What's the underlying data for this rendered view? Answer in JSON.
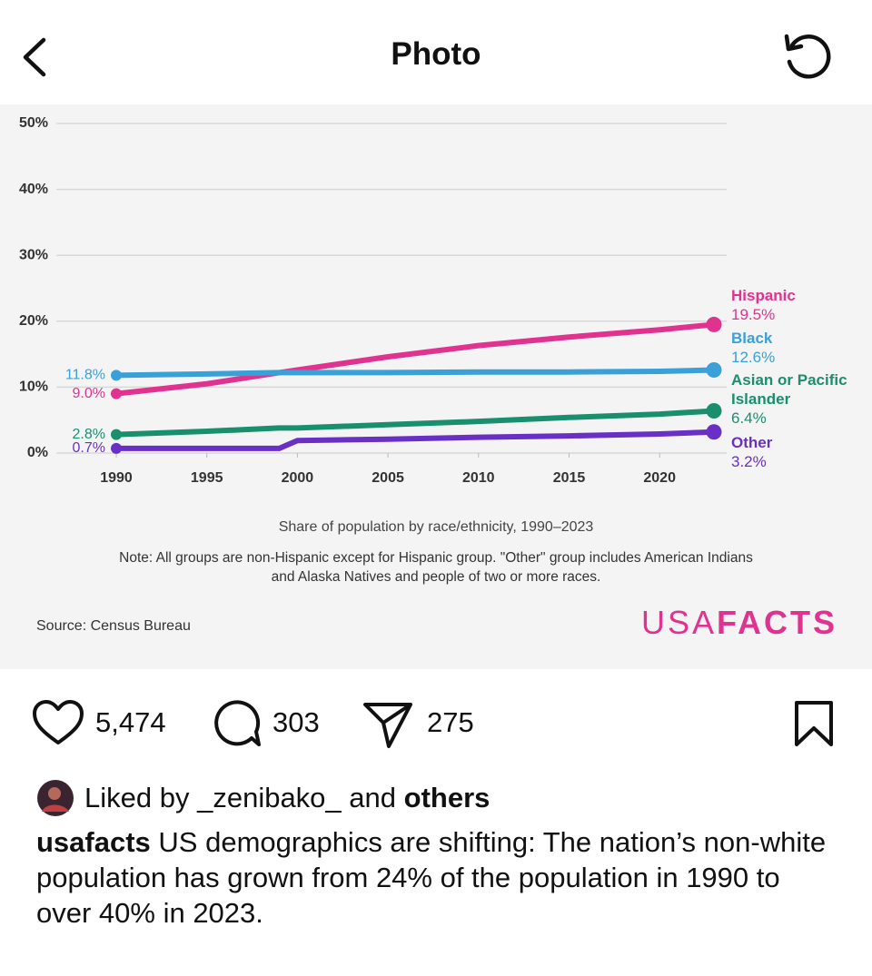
{
  "header": {
    "title": "Photo"
  },
  "chart_data": {
    "type": "line",
    "x": [
      1990,
      1995,
      1999,
      2000,
      2005,
      2010,
      2015,
      2020,
      2023
    ],
    "xlim": [
      1990,
      2023
    ],
    "xticks": [
      1990,
      1995,
      2000,
      2005,
      2010,
      2015,
      2020
    ],
    "ylim": [
      0,
      50
    ],
    "yticks": [
      {
        "value": 0,
        "label": "0%"
      },
      {
        "value": 10,
        "label": "10%"
      },
      {
        "value": 20,
        "label": "20%"
      },
      {
        "value": 30,
        "label": "30%"
      },
      {
        "value": 40,
        "label": "40%"
      },
      {
        "value": 50,
        "label": "50%"
      }
    ],
    "grid": true,
    "series": [
      {
        "name": "Hispanic",
        "color": "#e0338f",
        "values": [
          9.0,
          10.5,
          12.2,
          12.6,
          14.6,
          16.3,
          17.6,
          18.7,
          19.5
        ],
        "value_labels": [
          "9.0%",
          null,
          null,
          null,
          null,
          null,
          null,
          null,
          "19.5%"
        ]
      },
      {
        "name": "Black",
        "color": "#3aa0d8",
        "values": [
          11.8,
          12.0,
          12.2,
          12.2,
          12.2,
          12.3,
          12.3,
          12.4,
          12.6
        ],
        "value_labels": [
          "11.8%",
          null,
          null,
          null,
          null,
          null,
          null,
          null,
          "12.6%"
        ]
      },
      {
        "name": "Asian or Pacific Islander",
        "color": "#1a8f6e",
        "values": [
          2.8,
          3.3,
          3.8,
          3.8,
          4.3,
          4.8,
          5.4,
          5.9,
          6.4
        ],
        "value_labels": [
          "2.8%",
          null,
          null,
          null,
          null,
          null,
          null,
          null,
          "6.4%"
        ]
      },
      {
        "name": "Other",
        "color": "#6a2fc4",
        "values": [
          0.7,
          0.7,
          0.7,
          1.9,
          2.1,
          2.4,
          2.6,
          2.9,
          3.2
        ],
        "value_labels": [
          "0.7%",
          null,
          null,
          null,
          null,
          null,
          null,
          null,
          "3.2%"
        ]
      }
    ],
    "subtitle": "Share of population by race/ethnicity, 1990–2023",
    "note": "Note: All groups are non-Hispanic except for Hispanic group. \"Other\" group includes American Indians and Alaska Natives and people of two or more races.",
    "source": "Source: Census Bureau",
    "logo": {
      "light": "USA",
      "bold": "FACTS"
    }
  },
  "post": {
    "likes": "5,474",
    "comments": "303",
    "shares": "275",
    "liked_by": {
      "prefix": "Liked by",
      "user": "_zenibako_",
      "joiner": "and",
      "others": "others"
    },
    "caption": {
      "user": "usafacts",
      "text": "US demographics are shifting: The nation’s non-white population has grown from 24% of the population in 1990 to over 40% in 2023."
    }
  }
}
